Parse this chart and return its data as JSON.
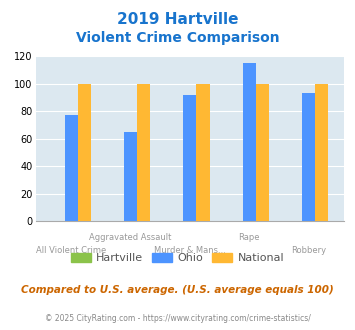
{
  "title_line1": "2019 Hartville",
  "title_line2": "Violent Crime Comparison",
  "title_color": "#1874cd",
  "categories_top": [
    "",
    "Aggravated Assault",
    "",
    "Rape",
    ""
  ],
  "categories_bot": [
    "All Violent Crime",
    "",
    "Murder & Mans...",
    "",
    "Robbery"
  ],
  "hartville": [
    0,
    0,
    0,
    0,
    0
  ],
  "ohio": [
    77,
    65,
    92,
    115,
    93
  ],
  "national": [
    100,
    100,
    100,
    100,
    100
  ],
  "hartville_color": "#8bc34a",
  "ohio_color": "#4d94ff",
  "national_color": "#ffb833",
  "ylim": [
    0,
    120
  ],
  "yticks": [
    0,
    20,
    40,
    60,
    80,
    100,
    120
  ],
  "plot_bg": "#dce8f0",
  "legend_labels": [
    "Hartville",
    "Ohio",
    "National"
  ],
  "footnote1": "Compared to U.S. average. (U.S. average equals 100)",
  "footnote2": "© 2025 CityRating.com - https://www.cityrating.com/crime-statistics/",
  "footnote1_color": "#cc6600",
  "footnote2_color": "#888888"
}
